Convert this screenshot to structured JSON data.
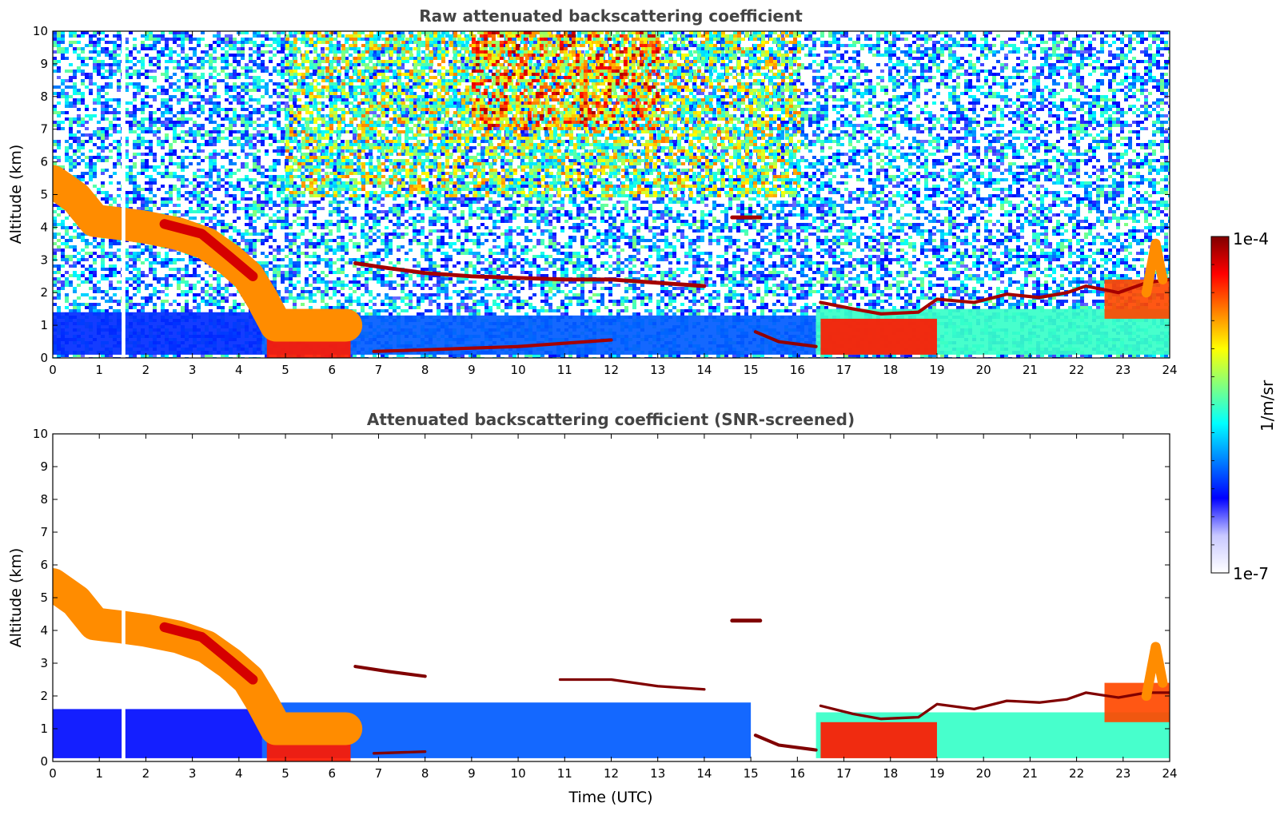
{
  "chart_data": [
    {
      "type": "heatmap",
      "title": "Raw attenuated backscattering coefficient",
      "xlabel": "",
      "ylabel": "Altitude (km)",
      "xlim": [
        0,
        24
      ],
      "ylim": [
        0,
        10
      ],
      "xticks": [
        "0",
        "1",
        "2",
        "3",
        "4",
        "5",
        "6",
        "7",
        "8",
        "9",
        "10",
        "11",
        "12",
        "13",
        "14",
        "15",
        "16",
        "17",
        "18",
        "19",
        "20",
        "21",
        "22",
        "23",
        "24"
      ],
      "yticks": [
        "0",
        "1",
        "2",
        "3",
        "4",
        "5",
        "6",
        "7",
        "8",
        "9",
        "10"
      ],
      "grid": false,
      "features": [
        {
          "kind": "noise",
          "x": [
            0,
            24
          ],
          "y": [
            0,
            10
          ],
          "value": 1.2e-06
        },
        {
          "kind": "noise",
          "x": [
            5,
            16
          ],
          "y": [
            5,
            10
          ],
          "value": 6e-06
        },
        {
          "kind": "noise",
          "x": [
            9,
            13
          ],
          "y": [
            7,
            10
          ],
          "value": 2e-05
        },
        {
          "kind": "band",
          "x": [
            0,
            4.5
          ],
          "y": [
            0.1,
            1.4
          ],
          "value": 6e-07
        },
        {
          "kind": "band",
          "x": [
            4.5,
            16.4
          ],
          "y": [
            0.1,
            1.3
          ],
          "value": 8e-07
        },
        {
          "kind": "band",
          "x": [
            16.4,
            24
          ],
          "y": [
            0.1,
            1.5
          ],
          "value": 3e-06
        },
        {
          "kind": "band",
          "x": [
            4.6,
            6.4
          ],
          "y": [
            0,
            1.0
          ],
          "value": 4e-05
        },
        {
          "kind": "band",
          "x": [
            16.5,
            19
          ],
          "y": [
            0.1,
            1.2
          ],
          "value": 4e-05
        },
        {
          "kind": "band",
          "x": [
            22.6,
            24
          ],
          "y": [
            1.2,
            2.4
          ],
          "value": 3e-05
        }
      ],
      "layers": [
        {
          "name": "",
          "value": 2e-05,
          "points": [
            [
              0,
              5.4
            ],
            [
              0.5,
              4.9
            ],
            [
              0.9,
              4.2
            ],
            [
              1.5,
              4.1
            ],
            [
              2,
              4.0
            ],
            [
              2.7,
              3.8
            ],
            [
              3.3,
              3.5
            ],
            [
              3.8,
              3.0
            ],
            [
              4.2,
              2.5
            ],
            [
              4.5,
              1.8
            ],
            [
              4.8,
              1.0
            ],
            [
              6.3,
              1.0
            ]
          ],
          "thickness": 1.0
        },
        {
          "name": "",
          "value": 6e-05,
          "points": [
            [
              2.4,
              4.1
            ],
            [
              3.2,
              3.8
            ],
            [
              3.8,
              3.1
            ],
            [
              4.3,
              2.5
            ]
          ],
          "thickness": 0.3
        },
        {
          "name": "",
          "value": 8e-05,
          "points": [
            [
              6.5,
              2.9
            ],
            [
              7.2,
              2.75
            ],
            [
              8,
              2.6
            ],
            [
              9,
              2.5
            ],
            [
              10,
              2.45
            ],
            [
              11,
              2.4
            ],
            [
              12,
              2.4
            ],
            [
              13,
              2.3
            ],
            [
              14,
              2.2
            ]
          ],
          "thickness": 0.12
        },
        {
          "name": "",
          "value": 8e-05,
          "points": [
            [
              14.6,
              4.3
            ],
            [
              15.2,
              4.3
            ]
          ],
          "thickness": 0.12
        },
        {
          "name": "",
          "value": 8e-05,
          "points": [
            [
              6.9,
              0.2
            ],
            [
              8,
              0.25
            ],
            [
              9,
              0.3
            ],
            [
              10,
              0.35
            ],
            [
              11,
              0.45
            ],
            [
              12,
              0.55
            ]
          ],
          "thickness": 0.1
        },
        {
          "name": "",
          "value": 9e-05,
          "points": [
            [
              15.1,
              0.8
            ],
            [
              15.6,
              0.5
            ],
            [
              16.4,
              0.35
            ]
          ],
          "thickness": 0.1
        },
        {
          "name": "",
          "value": 8e-05,
          "points": [
            [
              16.5,
              1.7
            ],
            [
              17.2,
              1.5
            ],
            [
              17.8,
              1.35
            ],
            [
              18.6,
              1.4
            ],
            [
              19,
              1.8
            ],
            [
              19.8,
              1.7
            ],
            [
              20.5,
              1.95
            ],
            [
              21.2,
              1.85
            ],
            [
              21.8,
              2.0
            ],
            [
              22.2,
              2.2
            ],
            [
              22.9,
              2.0
            ],
            [
              23.5,
              2.3
            ],
            [
              24,
              2.4
            ]
          ],
          "thickness": 0.1
        },
        {
          "name": "",
          "value": 2e-05,
          "points": [
            [
              23.5,
              2.0
            ],
            [
              23.7,
              3.5
            ],
            [
              23.85,
              2.4
            ]
          ],
          "thickness": 0.3
        }
      ],
      "missing": [
        {
          "x": [
            1.48,
            1.56
          ],
          "y": [
            0,
            10
          ]
        }
      ]
    },
    {
      "type": "heatmap",
      "title": "Attenuated backscattering coefficient (SNR-screened)",
      "xlabel": "Time (UTC)",
      "ylabel": "Altitude (km)",
      "xlim": [
        0,
        24
      ],
      "ylim": [
        0,
        10
      ],
      "xticks": [
        "0",
        "1",
        "2",
        "3",
        "4",
        "5",
        "6",
        "7",
        "8",
        "9",
        "10",
        "11",
        "12",
        "13",
        "14",
        "15",
        "16",
        "17",
        "18",
        "19",
        "20",
        "21",
        "22",
        "23",
        "24"
      ],
      "yticks": [
        "0",
        "1",
        "2",
        "3",
        "4",
        "5",
        "6",
        "7",
        "8",
        "9",
        "10"
      ],
      "grid": false,
      "features": [
        {
          "kind": "band",
          "x": [
            0,
            4.5
          ],
          "y": [
            0.1,
            1.6
          ],
          "value": 5e-07
        },
        {
          "kind": "band",
          "x": [
            4.5,
            15
          ],
          "y": [
            0.1,
            1.8
          ],
          "value": 8e-07
        },
        {
          "kind": "band",
          "x": [
            16.4,
            24
          ],
          "y": [
            0.1,
            1.5
          ],
          "value": 3e-06
        },
        {
          "kind": "band",
          "x": [
            4.6,
            6.4
          ],
          "y": [
            0,
            1.0
          ],
          "value": 4e-05
        },
        {
          "kind": "band",
          "x": [
            16.5,
            19
          ],
          "y": [
            0.1,
            1.2
          ],
          "value": 4e-05
        },
        {
          "kind": "band",
          "x": [
            22.6,
            24
          ],
          "y": [
            1.2,
            2.4
          ],
          "value": 3e-05
        }
      ],
      "layers": [
        {
          "name": "",
          "value": 2e-05,
          "points": [
            [
              0,
              5.4
            ],
            [
              0.5,
              4.9
            ],
            [
              0.9,
              4.2
            ],
            [
              1.5,
              4.1
            ],
            [
              2,
              4.0
            ],
            [
              2.7,
              3.8
            ],
            [
              3.3,
              3.5
            ],
            [
              3.8,
              3.0
            ],
            [
              4.2,
              2.5
            ],
            [
              4.5,
              1.8
            ],
            [
              4.8,
              1.0
            ],
            [
              6.3,
              1.0
            ]
          ],
          "thickness": 1.0
        },
        {
          "name": "",
          "value": 6e-05,
          "points": [
            [
              2.4,
              4.1
            ],
            [
              3.2,
              3.8
            ],
            [
              3.8,
              3.1
            ],
            [
              4.3,
              2.5
            ]
          ],
          "thickness": 0.3
        },
        {
          "name": "",
          "value": 0.0001,
          "points": [
            [
              6.5,
              2.9
            ],
            [
              7.2,
              2.75
            ],
            [
              8,
              2.6
            ]
          ],
          "thickness": 0.1
        },
        {
          "name": "",
          "value": 0.0001,
          "points": [
            [
              10.9,
              2.5
            ],
            [
              12,
              2.5
            ],
            [
              13,
              2.3
            ],
            [
              14,
              2.2
            ]
          ],
          "thickness": 0.08
        },
        {
          "name": "",
          "value": 0.0001,
          "points": [
            [
              14.6,
              4.3
            ],
            [
              15.2,
              4.3
            ]
          ],
          "thickness": 0.12
        },
        {
          "name": "",
          "value": 0.0001,
          "points": [
            [
              6.9,
              0.25
            ],
            [
              8,
              0.3
            ]
          ],
          "thickness": 0.08
        },
        {
          "name": "",
          "value": 0.0001,
          "points": [
            [
              15.1,
              0.8
            ],
            [
              15.6,
              0.5
            ],
            [
              16.4,
              0.35
            ]
          ],
          "thickness": 0.1
        },
        {
          "name": "",
          "value": 0.0001,
          "points": [
            [
              16.5,
              1.7
            ],
            [
              17.2,
              1.45
            ],
            [
              17.8,
              1.3
            ],
            [
              18.6,
              1.35
            ],
            [
              19,
              1.75
            ],
            [
              19.8,
              1.6
            ],
            [
              20.5,
              1.85
            ],
            [
              21.2,
              1.8
            ],
            [
              21.8,
              1.9
            ],
            [
              22.2,
              2.1
            ],
            [
              22.9,
              1.95
            ],
            [
              23.5,
              2.1
            ],
            [
              24,
              2.1
            ]
          ],
          "thickness": 0.08
        },
        {
          "name": "",
          "value": 2e-05,
          "points": [
            [
              23.5,
              2.0
            ],
            [
              23.7,
              3.5
            ],
            [
              23.85,
              2.4
            ]
          ],
          "thickness": 0.3
        }
      ],
      "missing": [
        {
          "x": [
            1.48,
            1.56
          ],
          "y": [
            0,
            10
          ]
        }
      ]
    }
  ],
  "colorbar": {
    "label": "1/m/sr",
    "min_label": "1e-7",
    "max_label": "1e-4",
    "min": 1e-07,
    "max": 0.0001,
    "scale": "log",
    "colormap": "jet",
    "stops": [
      "#ffffff",
      "#c8c8ff",
      "#0000ff",
      "#0080ff",
      "#00ffff",
      "#80ff80",
      "#ffff00",
      "#ff8000",
      "#ff0000",
      "#800000"
    ]
  }
}
